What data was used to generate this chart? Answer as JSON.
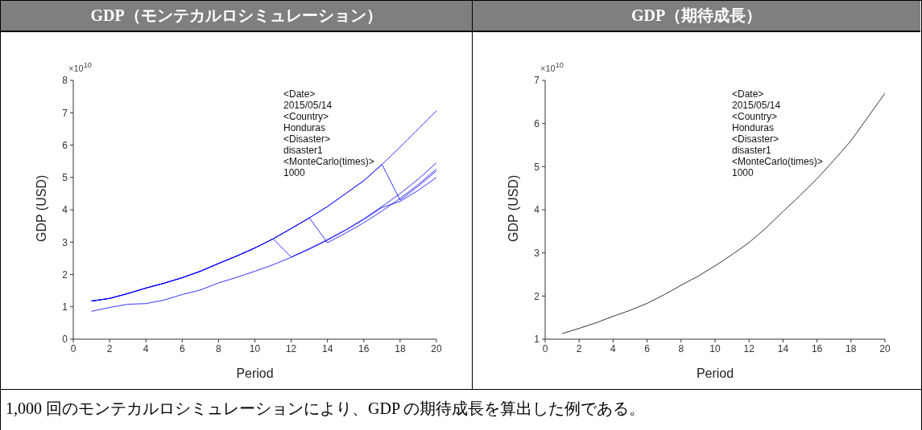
{
  "chart_data": [
    {
      "type": "line",
      "title": "GDP（モンテカルロシミュレーション）",
      "xlabel": "Period",
      "ylabel": "GDP (USD)",
      "x": [
        1,
        2,
        3,
        4,
        5,
        6,
        7,
        8,
        9,
        10,
        11,
        12,
        13,
        14,
        15,
        16,
        17,
        18,
        19,
        20
      ],
      "series": [
        {
          "color": "#0000ff",
          "values": [
            1.18,
            1.26,
            1.41,
            1.58,
            1.73,
            1.9,
            2.1,
            2.34,
            2.57,
            2.82,
            3.1,
            3.42,
            3.75,
            4.1,
            4.5,
            4.9,
            5.4,
            5.94,
            6.5,
            7.06
          ]
        },
        {
          "color": "#0000ff",
          "values": [
            1.18,
            1.26,
            1.41,
            1.58,
            1.73,
            1.9,
            2.1,
            2.34,
            2.57,
            2.82,
            3.1,
            2.54,
            2.8,
            3.08,
            3.38,
            3.72,
            4.1,
            4.5,
            4.95,
            5.45
          ]
        },
        {
          "color": "#0000ff",
          "values": [
            1.18,
            1.26,
            1.41,
            1.58,
            1.73,
            1.9,
            2.1,
            2.34,
            2.57,
            2.82,
            3.1,
            3.42,
            3.75,
            2.98,
            3.28,
            3.6,
            3.96,
            4.35,
            4.78,
            5.26
          ]
        },
        {
          "color": "#0000ff",
          "values": [
            0.86,
            0.98,
            1.08,
            1.1,
            1.21,
            1.38,
            1.52,
            1.74,
            1.91,
            2.1,
            2.3,
            2.53,
            2.78,
            3.06,
            3.37,
            3.7,
            4.07,
            4.26,
            4.6,
            5.0
          ]
        },
        {
          "color": "#0000ff",
          "values": [
            1.18,
            1.26,
            1.41,
            1.58,
            1.73,
            1.9,
            2.1,
            2.34,
            2.57,
            2.82,
            3.1,
            3.42,
            3.75,
            4.1,
            4.5,
            4.9,
            5.4,
            4.3,
            4.73,
            5.2
          ]
        }
      ],
      "xlim": [
        0,
        20
      ],
      "xticks": [
        0,
        2,
        4,
        6,
        8,
        10,
        12,
        14,
        16,
        18,
        20
      ],
      "ylim": [
        0,
        8
      ],
      "yticks": [
        0,
        1,
        2,
        3,
        4,
        5,
        6,
        7,
        8
      ],
      "grid": false,
      "legend": false,
      "marker": "none",
      "line_style": "solid",
      "annotations": [
        "×10$^{10}$",
        "<Date>",
        "2015/05/14",
        "<Country>",
        "Honduras",
        "<Disaster>",
        "disaster1",
        "<MonteCarlo(times)>",
        "1000"
      ]
    },
    {
      "type": "line",
      "title": "GDP（期待成長）",
      "xlabel": "Period",
      "ylabel": "GDP (USD)",
      "x": [
        1,
        2,
        3,
        4,
        5,
        6,
        7,
        8,
        9,
        10,
        11,
        12,
        13,
        14,
        15,
        16,
        17,
        18,
        19,
        20
      ],
      "series": [
        {
          "color": "#000000",
          "values": [
            1.13,
            1.25,
            1.38,
            1.53,
            1.67,
            1.83,
            2.03,
            2.25,
            2.46,
            2.7,
            2.96,
            3.24,
            3.58,
            3.96,
            4.33,
            4.72,
            5.15,
            5.6,
            6.15,
            6.7
          ]
        }
      ],
      "xlim": [
        0,
        20
      ],
      "xticks": [
        0,
        2,
        4,
        6,
        8,
        10,
        12,
        14,
        16,
        18,
        20
      ],
      "ylim": [
        1,
        7
      ],
      "yticks": [
        1,
        2,
        3,
        4,
        5,
        6,
        7
      ],
      "grid": false,
      "legend": false,
      "marker": "none",
      "line_style": "solid",
      "annotations": [
        "×10$^{10}$",
        "<Date>",
        "2015/05/14",
        "<Country>",
        "Honduras",
        "<Disaster>",
        "disaster1",
        "<MonteCarlo(times)>",
        "1000"
      ]
    },
    {
      "type": "other",
      "annotations": [
        "1,000 回のモンテカルロシミュレーションにより、GDP の期待成長を算出した例である。"
      ]
    }
  ]
}
